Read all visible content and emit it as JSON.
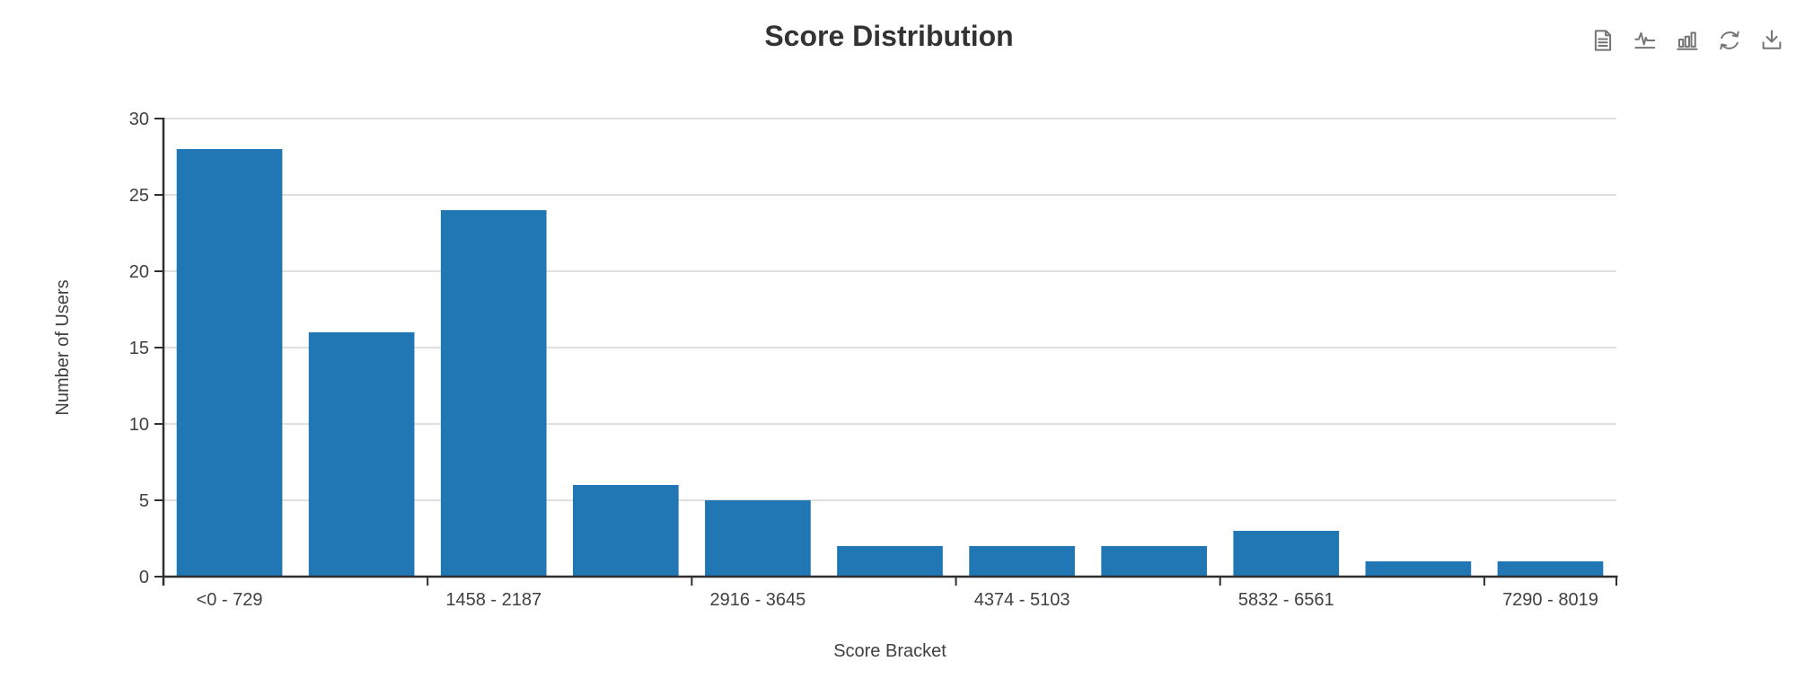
{
  "toolbar": {
    "icon_color": "#757575",
    "icons": [
      {
        "name": "data-view-icon"
      },
      {
        "name": "switch-to-line-chart-icon"
      },
      {
        "name": "switch-to-bar-chart-icon"
      },
      {
        "name": "restore-icon"
      },
      {
        "name": "save-as-image-icon"
      }
    ]
  },
  "chart_data": {
    "type": "bar",
    "title": "Score Distribution",
    "xlabel": "Score Bracket",
    "ylabel": "Number of Users",
    "values": [
      28,
      16,
      24,
      6,
      5,
      2,
      2,
      2,
      3,
      1,
      1
    ],
    "x_tick_labels": [
      "<0 - 729",
      "",
      "1458 - 2187",
      "",
      "2916 - 3645",
      "",
      "4374 - 5103",
      "",
      "5832 - 6561",
      "",
      "7290 - 8019"
    ],
    "y_ticks": [
      0,
      5,
      10,
      15,
      20,
      25,
      30
    ],
    "ylim": [
      0,
      30
    ],
    "grid": true,
    "legend": "none",
    "bar_color": "#2176b4",
    "axis_color": "#2f2f2f",
    "grid_color": "#e0e0e0",
    "label_color": "#404040",
    "x_label_interval": 2
  }
}
